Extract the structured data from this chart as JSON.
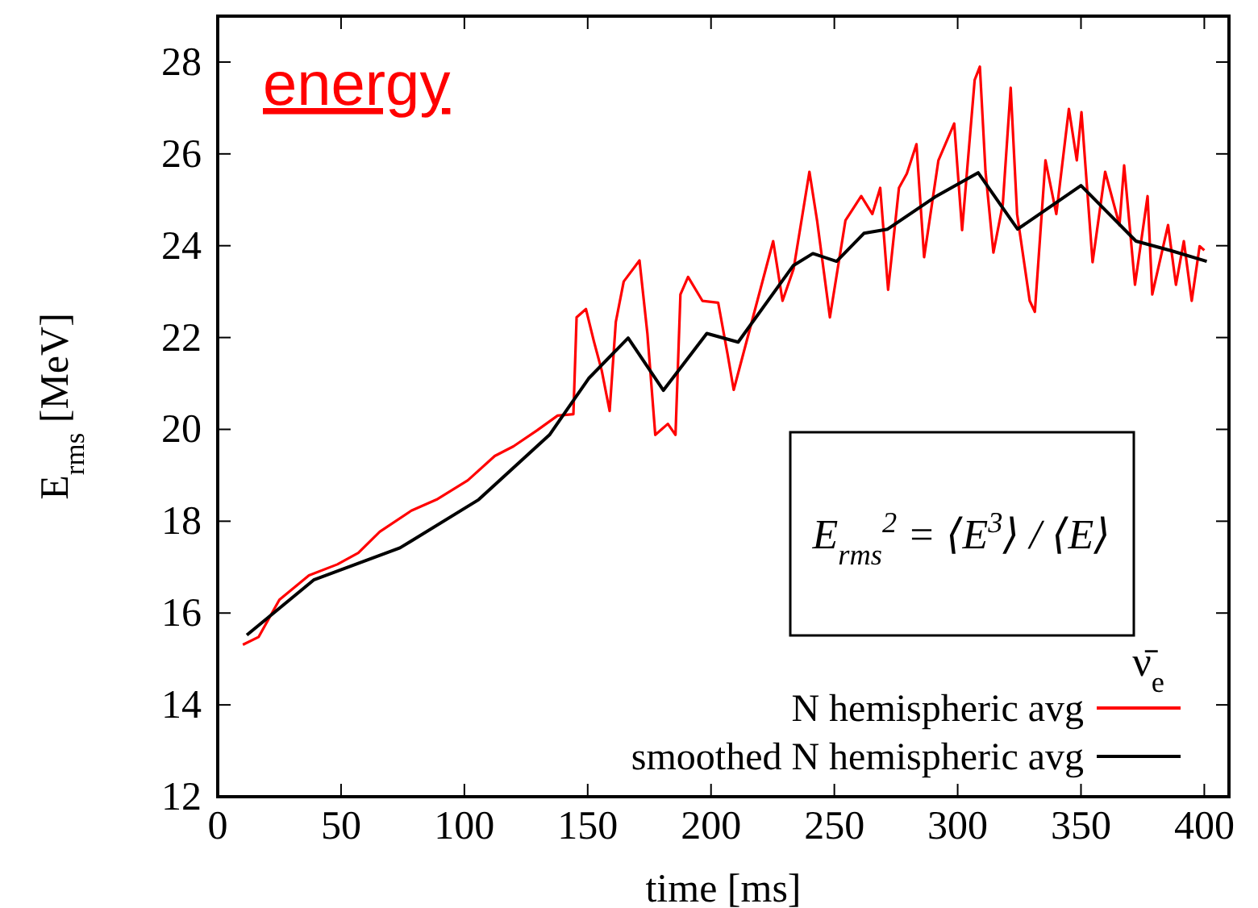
{
  "chart_data": {
    "type": "line",
    "title": "energy",
    "xlabel": "time [ms]",
    "ylabel": "E$_{rms}$ [MeV]",
    "legend_title": "ν̄$_{e}$",
    "legend": "bottom right",
    "grid": false,
    "xlim": [
      0,
      410
    ],
    "ylim": [
      12,
      29
    ],
    "xticks": [
      0,
      50,
      100,
      150,
      200,
      250,
      300,
      350,
      400
    ],
    "yticks": [
      12,
      14,
      16,
      18,
      20,
      22,
      24,
      26,
      28
    ],
    "annotations": [
      "E$_{rms}$$^{2}$ = ⟨E$^{3}$⟩ / ⟨E⟩"
    ],
    "series": [
      {
        "name": "N hemispheric avg",
        "color": "#ff0000",
        "x": [
          10.2,
          16.6,
          25,
          37,
          48.5,
          57,
          65.7,
          78.5,
          88.7,
          101.4,
          112.3,
          119.9,
          129.5,
          137.8,
          144.2,
          145.5,
          149.3,
          152.5,
          155.7,
          158.9,
          161.4,
          164.6,
          171,
          174.2,
          177.4,
          182.5,
          185.6,
          187.6,
          190.7,
          196.5,
          202.9,
          206.7,
          209.2,
          225.2,
          229,
          233.5,
          239.9,
          243,
          248.2,
          254.5,
          260.9,
          265.4,
          268.6,
          271.8,
          276.2,
          279.4,
          283.3,
          286.4,
          292.2,
          298.6,
          301.8,
          306.9,
          309,
          311.3,
          314.5,
          318.3,
          321.5,
          324.1,
          329.2,
          331.3,
          335.6,
          340,
          345.1,
          348.3,
          350.2,
          354.7,
          359.8,
          365.6,
          367.5,
          371.9,
          377,
          378.9,
          385.3,
          388.5,
          391.7,
          394.9,
          398.1,
          400
        ],
        "values": [
          15.31,
          15.48,
          16.29,
          16.82,
          17.06,
          17.31,
          17.77,
          18.23,
          18.47,
          18.89,
          19.42,
          19.63,
          19.98,
          20.3,
          20.33,
          22.44,
          22.62,
          21.92,
          21.28,
          20.4,
          22.34,
          23.22,
          23.68,
          22.09,
          19.88,
          20.12,
          19.88,
          22.94,
          23.32,
          22.8,
          22.76,
          21.64,
          20.86,
          24.1,
          22.8,
          23.5,
          25.61,
          24.55,
          22.44,
          24.55,
          25.08,
          24.69,
          25.26,
          23.04,
          25.26,
          25.57,
          26.21,
          23.75,
          25.86,
          26.66,
          24.34,
          27.61,
          27.9,
          25.61,
          23.85,
          24.9,
          27.44,
          24.69,
          22.8,
          22.56,
          25.86,
          24.69,
          26.98,
          25.86,
          26.91,
          23.64,
          25.61,
          24.45,
          25.75,
          23.15,
          25.08,
          22.94,
          24.45,
          23.15,
          24.1,
          22.8,
          23.99,
          23.9
        ]
      },
      {
        "name": "smoothed N hemispheric avg",
        "color": "#000000",
        "x": [
          11.8,
          38.9,
          73.9,
          105.8,
          134.5,
          150.4,
          166.4,
          180.7,
          198.3,
          211,
          233.4,
          241.3,
          250.9,
          262,
          271.6,
          290.8,
          308.3,
          324.3,
          350,
          372.3,
          386.7,
          401
        ],
        "values": [
          15.52,
          16.72,
          17.42,
          18.47,
          19.88,
          21.11,
          21.99,
          20.85,
          22.09,
          21.9,
          23.57,
          23.83,
          23.66,
          24.27,
          24.36,
          25.06,
          25.59,
          24.36,
          25.31,
          24.1,
          23.89,
          23.66
        ]
      }
    ]
  }
}
